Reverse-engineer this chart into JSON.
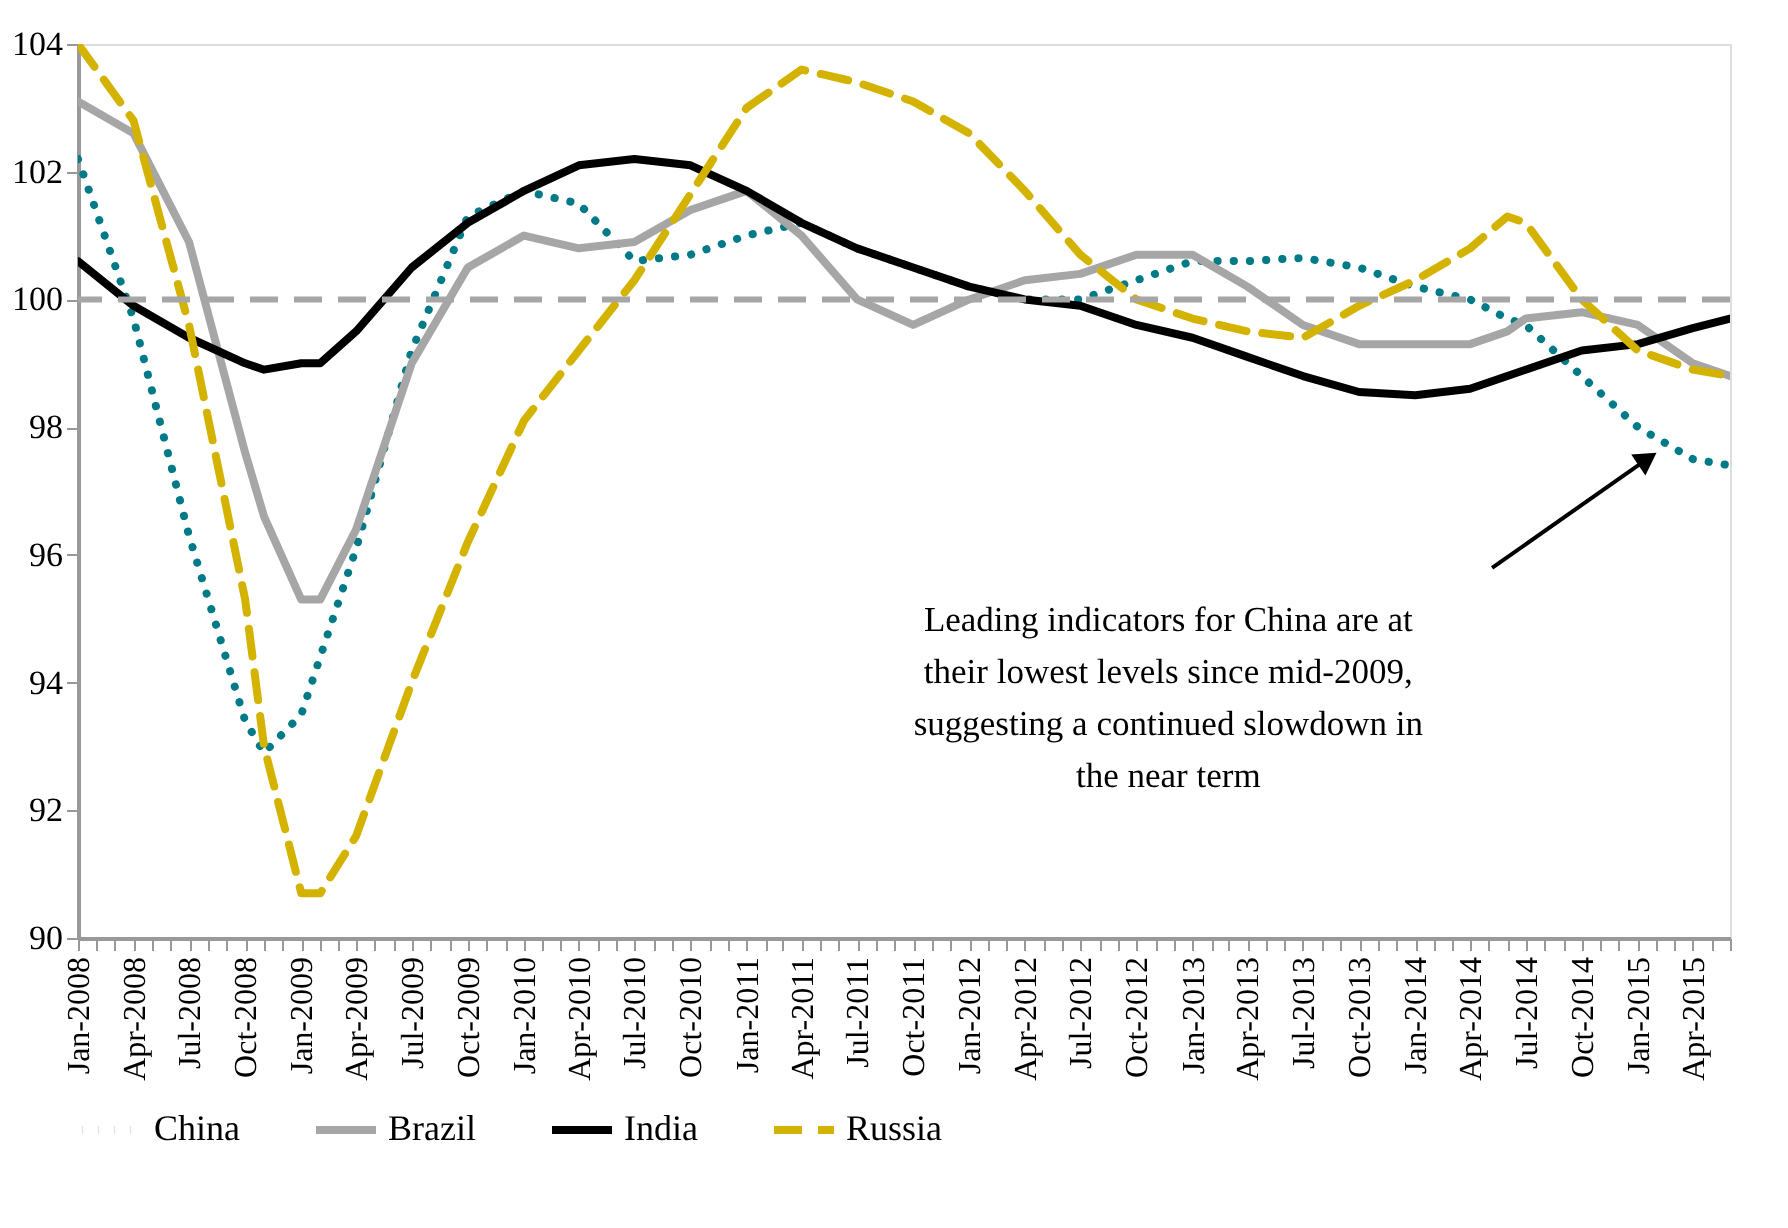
{
  "chart_data": {
    "type": "line",
    "x": [
      "2008-01",
      "2008-04",
      "2008-07",
      "2008-10",
      "2008-11",
      "2009-01",
      "2009-02",
      "2009-04",
      "2009-07",
      "2009-10",
      "2010-01",
      "2010-04",
      "2010-07",
      "2010-10",
      "2011-01",
      "2011-04",
      "2011-07",
      "2011-10",
      "2012-01",
      "2012-04",
      "2012-07",
      "2012-10",
      "2013-01",
      "2013-04",
      "2013-07",
      "2013-10",
      "2014-01",
      "2014-04",
      "2014-06",
      "2014-07",
      "2014-10",
      "2015-01",
      "2015-04",
      "2015-06"
    ],
    "series": [
      {
        "name": "China",
        "color": "#007a87",
        "line_style": "dotted",
        "values": [
          102.2,
          99.7,
          96.3,
          93.4,
          92.9,
          93.5,
          94.4,
          96.1,
          99.2,
          101.3,
          101.7,
          101.5,
          100.6,
          100.7,
          101.0,
          101.2,
          100.8,
          100.5,
          100.2,
          100.0,
          100.0,
          100.3,
          100.6,
          100.6,
          100.65,
          100.5,
          100.2,
          100.0,
          99.7,
          99.6,
          98.8,
          98.0,
          97.5,
          97.4
        ]
      },
      {
        "name": "Brazil",
        "color": "#a6a6a6",
        "line_style": "solid",
        "values": [
          103.1,
          102.6,
          100.9,
          97.6,
          96.6,
          95.3,
          95.3,
          96.4,
          99.0,
          100.5,
          101.0,
          100.8,
          100.9,
          101.4,
          101.7,
          101.0,
          100.0,
          99.6,
          100.0,
          100.3,
          100.4,
          100.7,
          100.7,
          100.2,
          99.6,
          99.3,
          99.3,
          99.3,
          99.5,
          99.7,
          99.8,
          99.6,
          99.0,
          98.8
        ]
      },
      {
        "name": "India",
        "color": "#000000",
        "line_style": "solid",
        "values": [
          100.6,
          99.9,
          99.4,
          99.0,
          98.9,
          99.0,
          99.0,
          99.5,
          100.5,
          101.2,
          101.7,
          102.1,
          102.2,
          102.1,
          101.7,
          101.2,
          100.8,
          100.5,
          100.2,
          100.0,
          99.9,
          99.6,
          99.4,
          99.1,
          98.8,
          98.55,
          98.5,
          98.6,
          98.8,
          98.9,
          99.2,
          99.3,
          99.55,
          99.7
        ]
      },
      {
        "name": "Russia",
        "color": "#d4b300",
        "line_style": "dashed",
        "values": [
          104.0,
          102.8,
          99.6,
          95.3,
          93.0,
          90.7,
          90.7,
          91.6,
          94.0,
          96.2,
          98.1,
          99.2,
          100.3,
          101.65,
          103.0,
          103.6,
          103.4,
          103.1,
          102.6,
          101.7,
          100.7,
          100.0,
          99.7,
          99.5,
          99.4,
          99.9,
          100.3,
          100.8,
          101.3,
          101.2,
          100.0,
          99.2,
          98.9,
          98.8
        ]
      }
    ],
    "ylim": [
      90,
      104
    ],
    "yticks": [
      90,
      92,
      94,
      96,
      98,
      100,
      102,
      104
    ],
    "xlim": [
      "2008-01",
      "2015-06"
    ],
    "xticks": [
      {
        "value": "2008-01",
        "label": "Jan-2008"
      },
      {
        "value": "2008-02",
        "label": null
      },
      {
        "value": "2008-03",
        "label": null
      },
      {
        "value": "2008-04",
        "label": "Apr-2008"
      },
      {
        "value": "2008-05",
        "label": null
      },
      {
        "value": "2008-06",
        "label": null
      },
      {
        "value": "2008-07",
        "label": "Jul-2008"
      },
      {
        "value": "2008-08",
        "label": null
      },
      {
        "value": "2008-09",
        "label": null
      },
      {
        "value": "2008-10",
        "label": "Oct-2008"
      },
      {
        "value": "2008-11",
        "label": null
      },
      {
        "value": "2008-12",
        "label": null
      },
      {
        "value": "2009-01",
        "label": "Jan-2009"
      },
      {
        "value": "2009-02",
        "label": null
      },
      {
        "value": "2009-03",
        "label": null
      },
      {
        "value": "2009-04",
        "label": "Apr-2009"
      },
      {
        "value": "2009-05",
        "label": null
      },
      {
        "value": "2009-06",
        "label": null
      },
      {
        "value": "2009-07",
        "label": "Jul-2009"
      },
      {
        "value": "2009-08",
        "label": null
      },
      {
        "value": "2009-09",
        "label": null
      },
      {
        "value": "2009-10",
        "label": "Oct-2009"
      },
      {
        "value": "2009-11",
        "label": null
      },
      {
        "value": "2009-12",
        "label": null
      },
      {
        "value": "2010-01",
        "label": "Jan-2010"
      },
      {
        "value": "2010-02",
        "label": null
      },
      {
        "value": "2010-03",
        "label": null
      },
      {
        "value": "2010-04",
        "label": "Apr-2010"
      },
      {
        "value": "2010-05",
        "label": null
      },
      {
        "value": "2010-06",
        "label": null
      },
      {
        "value": "2010-07",
        "label": "Jul-2010"
      },
      {
        "value": "2010-08",
        "label": null
      },
      {
        "value": "2010-09",
        "label": null
      },
      {
        "value": "2010-10",
        "label": "Oct-2010"
      },
      {
        "value": "2010-11",
        "label": null
      },
      {
        "value": "2010-12",
        "label": null
      },
      {
        "value": "2011-01",
        "label": "Jan-2011"
      },
      {
        "value": "2011-02",
        "label": null
      },
      {
        "value": "2011-03",
        "label": null
      },
      {
        "value": "2011-04",
        "label": "Apr-2011"
      },
      {
        "value": "2011-05",
        "label": null
      },
      {
        "value": "2011-06",
        "label": null
      },
      {
        "value": "2011-07",
        "label": "Jul-2011"
      },
      {
        "value": "2011-08",
        "label": null
      },
      {
        "value": "2011-09",
        "label": null
      },
      {
        "value": "2011-10",
        "label": "Oct-2011"
      },
      {
        "value": "2011-11",
        "label": null
      },
      {
        "value": "2011-12",
        "label": null
      },
      {
        "value": "2012-01",
        "label": "Jan-2012"
      },
      {
        "value": "2012-02",
        "label": null
      },
      {
        "value": "2012-03",
        "label": null
      },
      {
        "value": "2012-04",
        "label": "Apr-2012"
      },
      {
        "value": "2012-05",
        "label": null
      },
      {
        "value": "2012-06",
        "label": null
      },
      {
        "value": "2012-07",
        "label": "Jul-2012"
      },
      {
        "value": "2012-08",
        "label": null
      },
      {
        "value": "2012-09",
        "label": null
      },
      {
        "value": "2012-10",
        "label": "Oct-2012"
      },
      {
        "value": "2012-11",
        "label": null
      },
      {
        "value": "2012-12",
        "label": null
      },
      {
        "value": "2013-01",
        "label": "Jan-2013"
      },
      {
        "value": "2013-02",
        "label": null
      },
      {
        "value": "2013-03",
        "label": null
      },
      {
        "value": "2013-04",
        "label": "Apr-2013"
      },
      {
        "value": "2013-05",
        "label": null
      },
      {
        "value": "2013-06",
        "label": null
      },
      {
        "value": "2013-07",
        "label": "Jul-2013"
      },
      {
        "value": "2013-08",
        "label": null
      },
      {
        "value": "2013-09",
        "label": null
      },
      {
        "value": "2013-10",
        "label": "Oct-2013"
      },
      {
        "value": "2013-11",
        "label": null
      },
      {
        "value": "2013-12",
        "label": null
      },
      {
        "value": "2014-01",
        "label": "Jan-2014"
      },
      {
        "value": "2014-02",
        "label": null
      },
      {
        "value": "2014-03",
        "label": null
      },
      {
        "value": "2014-04",
        "label": "Apr-2014"
      },
      {
        "value": "2014-05",
        "label": null
      },
      {
        "value": "2014-06",
        "label": null
      },
      {
        "value": "2014-07",
        "label": "Jul-2014"
      },
      {
        "value": "2014-08",
        "label": null
      },
      {
        "value": "2014-09",
        "label": null
      },
      {
        "value": "2014-10",
        "label": "Oct-2014"
      },
      {
        "value": "2014-11",
        "label": null
      },
      {
        "value": "2014-12",
        "label": null
      },
      {
        "value": "2015-01",
        "label": "Jan-2015"
      },
      {
        "value": "2015-02",
        "label": null
      },
      {
        "value": "2015-03",
        "label": null
      },
      {
        "value": "2015-04",
        "label": "Apr-2015"
      },
      {
        "value": "2015-05",
        "label": null
      },
      {
        "value": "2015-06",
        "label": null
      }
    ],
    "ref_lines": [
      {
        "axis": "y",
        "value": 100,
        "color": "#a6a6a6",
        "line_style": "dashed"
      }
    ],
    "annotations": [
      "Leading indicators for China are at\ntheir lowest levels since mid-2009,\nsuggesting a continued slowdown in\nthe near term"
    ],
    "grid": false,
    "legend": "bottom",
    "marker": "none"
  }
}
